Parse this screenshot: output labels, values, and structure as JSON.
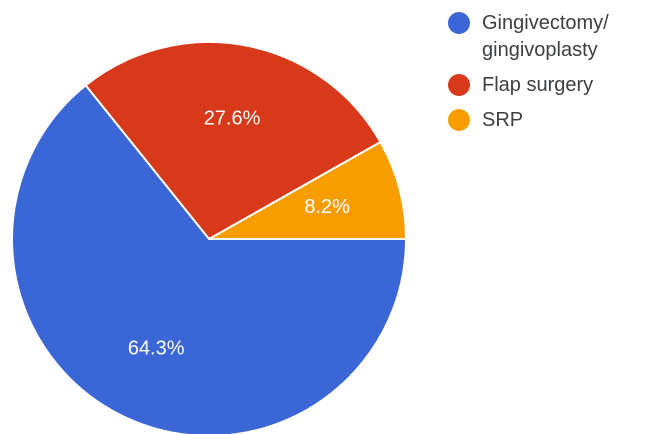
{
  "chart_data": {
    "type": "pie",
    "title": "",
    "start_angle_deg": 0,
    "direction": "counterclockwise",
    "legend_position": "right",
    "slices": [
      {
        "label": "Gingivectomy/ gingivoplasty",
        "value": 64.3,
        "value_label": "64.3%",
        "color": "#3b66d6"
      },
      {
        "label": "Flap surgery",
        "value": 27.6,
        "value_label": "27.6%",
        "color": "#d8391a"
      },
      {
        "label": "SRP",
        "value": 8.2,
        "value_label": "8.2%",
        "color": "#f79d00"
      }
    ]
  }
}
